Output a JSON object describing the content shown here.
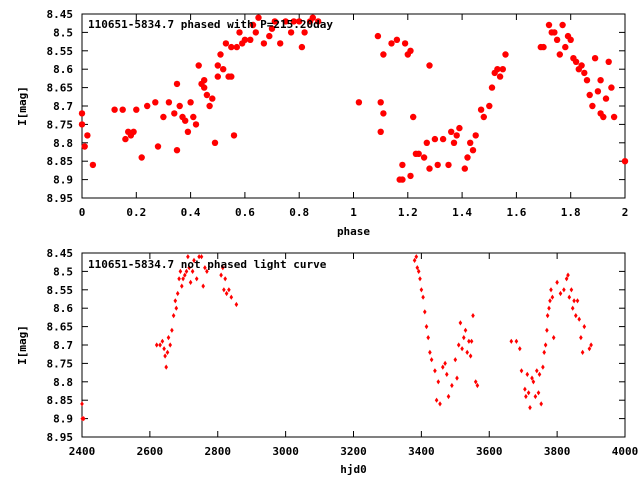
{
  "chart_data": [
    {
      "type": "scatter",
      "title": "110651-5834.7 phased with P=215.20day",
      "xlabel": "phase",
      "ylabel": "I[mag]",
      "xlim": [
        0,
        2
      ],
      "ylim": [
        8.45,
        8.95
      ],
      "y_inverted": true,
      "grid": false,
      "marker_color": "#ff0000",
      "marker": "filled-dot",
      "xticks": [
        "0",
        "0.2",
        "0.4",
        "0.6",
        "0.8",
        "1",
        "1.2",
        "1.4",
        "1.6",
        "1.8",
        "2"
      ],
      "yticks": [
        "8.45",
        "8.5",
        "8.55",
        "8.6",
        "8.65",
        "8.7",
        "8.75",
        "8.8",
        "8.85",
        "8.9",
        "8.95"
      ],
      "points": [
        [
          0.0,
          8.72
        ],
        [
          0.0,
          8.75
        ],
        [
          0.01,
          8.81
        ],
        [
          0.02,
          8.78
        ],
        [
          0.04,
          8.86
        ],
        [
          0.12,
          8.71
        ],
        [
          0.15,
          8.71
        ],
        [
          0.16,
          8.79
        ],
        [
          0.17,
          8.77
        ],
        [
          0.18,
          8.78
        ],
        [
          0.19,
          8.77
        ],
        [
          0.2,
          8.71
        ],
        [
          0.22,
          8.84
        ],
        [
          0.24,
          8.7
        ],
        [
          0.27,
          8.69
        ],
        [
          0.28,
          8.81
        ],
        [
          0.3,
          8.73
        ],
        [
          0.32,
          8.69
        ],
        [
          0.34,
          8.72
        ],
        [
          0.35,
          8.64
        ],
        [
          0.35,
          8.82
        ],
        [
          0.36,
          8.7
        ],
        [
          0.37,
          8.73
        ],
        [
          0.38,
          8.74
        ],
        [
          0.39,
          8.77
        ],
        [
          0.4,
          8.69
        ],
        [
          0.41,
          8.73
        ],
        [
          0.42,
          8.75
        ],
        [
          0.43,
          8.59
        ],
        [
          0.44,
          8.64
        ],
        [
          0.45,
          8.63
        ],
        [
          0.45,
          8.65
        ],
        [
          0.46,
          8.67
        ],
        [
          0.47,
          8.7
        ],
        [
          0.48,
          8.68
        ],
        [
          0.49,
          8.8
        ],
        [
          0.5,
          8.59
        ],
        [
          0.5,
          8.62
        ],
        [
          0.51,
          8.56
        ],
        [
          0.52,
          8.6
        ],
        [
          0.53,
          8.53
        ],
        [
          0.54,
          8.62
        ],
        [
          0.55,
          8.54
        ],
        [
          0.55,
          8.62
        ],
        [
          0.56,
          8.78
        ],
        [
          0.57,
          8.54
        ],
        [
          0.58,
          8.5
        ],
        [
          0.59,
          8.53
        ],
        [
          0.6,
          8.52
        ],
        [
          0.62,
          8.52
        ],
        [
          0.63,
          8.48
        ],
        [
          0.64,
          8.5
        ],
        [
          0.65,
          8.46
        ],
        [
          0.67,
          8.53
        ],
        [
          0.69,
          8.51
        ],
        [
          0.7,
          8.49
        ],
        [
          0.71,
          8.47
        ],
        [
          0.73,
          8.53
        ],
        [
          0.75,
          8.47
        ],
        [
          0.77,
          8.5
        ],
        [
          0.78,
          8.47
        ],
        [
          0.8,
          8.47
        ],
        [
          0.81,
          8.54
        ],
        [
          0.82,
          8.5
        ],
        [
          0.84,
          8.47
        ],
        [
          0.85,
          8.46
        ],
        [
          0.87,
          8.47
        ],
        [
          1.02,
          8.69
        ],
        [
          1.09,
          8.51
        ],
        [
          1.1,
          8.77
        ],
        [
          1.1,
          8.69
        ],
        [
          1.11,
          8.56
        ],
        [
          1.11,
          8.72
        ],
        [
          1.14,
          8.53
        ],
        [
          1.16,
          8.52
        ],
        [
          1.17,
          8.9
        ],
        [
          1.18,
          8.86
        ],
        [
          1.18,
          8.9
        ],
        [
          1.19,
          8.53
        ],
        [
          1.2,
          8.56
        ],
        [
          1.21,
          8.89
        ],
        [
          1.21,
          8.55
        ],
        [
          1.22,
          8.73
        ],
        [
          1.23,
          8.83
        ],
        [
          1.24,
          8.83
        ],
        [
          1.26,
          8.84
        ],
        [
          1.27,
          8.8
        ],
        [
          1.28,
          8.59
        ],
        [
          1.28,
          8.87
        ],
        [
          1.3,
          8.79
        ],
        [
          1.31,
          8.86
        ],
        [
          1.33,
          8.79
        ],
        [
          1.35,
          8.86
        ],
        [
          1.36,
          8.77
        ],
        [
          1.37,
          8.8
        ],
        [
          1.38,
          8.78
        ],
        [
          1.39,
          8.76
        ],
        [
          1.41,
          8.87
        ],
        [
          1.42,
          8.84
        ],
        [
          1.43,
          8.8
        ],
        [
          1.44,
          8.82
        ],
        [
          1.45,
          8.78
        ],
        [
          1.47,
          8.71
        ],
        [
          1.48,
          8.73
        ],
        [
          1.5,
          8.7
        ],
        [
          1.51,
          8.65
        ],
        [
          1.52,
          8.61
        ],
        [
          1.53,
          8.6
        ],
        [
          1.54,
          8.62
        ],
        [
          1.55,
          8.6
        ],
        [
          1.56,
          8.56
        ],
        [
          1.69,
          8.54
        ],
        [
          1.7,
          8.54
        ],
        [
          1.72,
          8.48
        ],
        [
          1.73,
          8.5
        ],
        [
          1.74,
          8.5
        ],
        [
          1.75,
          8.52
        ],
        [
          1.76,
          8.56
        ],
        [
          1.77,
          8.48
        ],
        [
          1.78,
          8.54
        ],
        [
          1.79,
          8.51
        ],
        [
          1.8,
          8.52
        ],
        [
          1.81,
          8.57
        ],
        [
          1.82,
          8.58
        ],
        [
          1.83,
          8.6
        ],
        [
          1.84,
          8.59
        ],
        [
          1.85,
          8.61
        ],
        [
          1.86,
          8.63
        ],
        [
          1.87,
          8.67
        ],
        [
          1.88,
          8.7
        ],
        [
          1.89,
          8.57
        ],
        [
          1.9,
          8.66
        ],
        [
          1.91,
          8.63
        ],
        [
          1.91,
          8.72
        ],
        [
          1.92,
          8.73
        ],
        [
          1.93,
          8.68
        ],
        [
          1.94,
          8.58
        ],
        [
          1.95,
          8.65
        ],
        [
          1.96,
          8.73
        ],
        [
          2.0,
          8.85
        ]
      ]
    },
    {
      "type": "scatter",
      "title": "110651-5834.7 not phased light curve",
      "xlabel": "hjd0",
      "ylabel": "I[mag]",
      "xlim": [
        2400,
        4000
      ],
      "ylim": [
        8.45,
        8.95
      ],
      "y_inverted": true,
      "grid": false,
      "marker_color": "#ff0000",
      "marker": "small-diamond",
      "xticks": [
        "2400",
        "2600",
        "2800",
        "3000",
        "3200",
        "3400",
        "3600",
        "3800",
        "4000"
      ],
      "yticks": [
        "8.45",
        "8.5",
        "8.55",
        "8.6",
        "8.65",
        "8.7",
        "8.75",
        "8.8",
        "8.85",
        "8.9",
        "8.95"
      ],
      "points": [
        [
          2400,
          8.86
        ],
        [
          2401,
          8.9
        ],
        [
          2405,
          8.9
        ],
        [
          2620,
          8.7
        ],
        [
          2630,
          8.7
        ],
        [
          2637,
          8.69
        ],
        [
          2642,
          8.71
        ],
        [
          2645,
          8.73
        ],
        [
          2648,
          8.76
        ],
        [
          2652,
          8.72
        ],
        [
          2655,
          8.68
        ],
        [
          2660,
          8.7
        ],
        [
          2665,
          8.66
        ],
        [
          2670,
          8.62
        ],
        [
          2675,
          8.58
        ],
        [
          2678,
          8.6
        ],
        [
          2682,
          8.56
        ],
        [
          2686,
          8.52
        ],
        [
          2690,
          8.5
        ],
        [
          2694,
          8.54
        ],
        [
          2698,
          8.52
        ],
        [
          2703,
          8.51
        ],
        [
          2708,
          8.5
        ],
        [
          2712,
          8.46
        ],
        [
          2716,
          8.49
        ],
        [
          2720,
          8.53
        ],
        [
          2726,
          8.5
        ],
        [
          2730,
          8.47
        ],
        [
          2738,
          8.52
        ],
        [
          2745,
          8.46
        ],
        [
          2752,
          8.46
        ],
        [
          2757,
          8.54
        ],
        [
          2762,
          8.49
        ],
        [
          2768,
          8.5
        ],
        [
          2810,
          8.51
        ],
        [
          2815,
          8.49
        ],
        [
          2818,
          8.55
        ],
        [
          2822,
          8.52
        ],
        [
          2826,
          8.56
        ],
        [
          2833,
          8.55
        ],
        [
          2840,
          8.57
        ],
        [
          2855,
          8.59
        ],
        [
          3380,
          8.47
        ],
        [
          3385,
          8.46
        ],
        [
          3388,
          8.49
        ],
        [
          3392,
          8.5
        ],
        [
          3396,
          8.52
        ],
        [
          3400,
          8.55
        ],
        [
          3405,
          8.57
        ],
        [
          3410,
          8.61
        ],
        [
          3415,
          8.65
        ],
        [
          3420,
          8.68
        ],
        [
          3425,
          8.72
        ],
        [
          3430,
          8.74
        ],
        [
          3440,
          8.77
        ],
        [
          3445,
          8.85
        ],
        [
          3450,
          8.8
        ],
        [
          3455,
          8.86
        ],
        [
          3463,
          8.76
        ],
        [
          3470,
          8.75
        ],
        [
          3475,
          8.78
        ],
        [
          3480,
          8.84
        ],
        [
          3490,
          8.81
        ],
        [
          3500,
          8.74
        ],
        [
          3505,
          8.79
        ],
        [
          3510,
          8.7
        ],
        [
          3515,
          8.64
        ],
        [
          3520,
          8.71
        ],
        [
          3525,
          8.68
        ],
        [
          3530,
          8.66
        ],
        [
          3535,
          8.72
        ],
        [
          3540,
          8.69
        ],
        [
          3545,
          8.73
        ],
        [
          3548,
          8.69
        ],
        [
          3552,
          8.62
        ],
        [
          3560,
          8.8
        ],
        [
          3565,
          8.81
        ],
        [
          3665,
          8.69
        ],
        [
          3680,
          8.69
        ],
        [
          3690,
          8.71
        ],
        [
          3695,
          8.77
        ],
        [
          3705,
          8.82
        ],
        [
          3708,
          8.84
        ],
        [
          3712,
          8.78
        ],
        [
          3716,
          8.83
        ],
        [
          3720,
          8.87
        ],
        [
          3726,
          8.79
        ],
        [
          3730,
          8.8
        ],
        [
          3736,
          8.84
        ],
        [
          3740,
          8.77
        ],
        [
          3745,
          8.83
        ],
        [
          3748,
          8.78
        ],
        [
          3753,
          8.86
        ],
        [
          3758,
          8.76
        ],
        [
          3762,
          8.72
        ],
        [
          3766,
          8.7
        ],
        [
          3770,
          8.66
        ],
        [
          3772,
          8.62
        ],
        [
          3776,
          8.6
        ],
        [
          3779,
          8.58
        ],
        [
          3782,
          8.55
        ],
        [
          3786,
          8.57
        ],
        [
          3790,
          8.68
        ],
        [
          3800,
          8.53
        ],
        [
          3810,
          8.56
        ],
        [
          3820,
          8.55
        ],
        [
          3828,
          8.52
        ],
        [
          3832,
          8.51
        ],
        [
          3836,
          8.57
        ],
        [
          3842,
          8.55
        ],
        [
          3846,
          8.6
        ],
        [
          3850,
          8.58
        ],
        [
          3855,
          8.62
        ],
        [
          3860,
          8.58
        ],
        [
          3865,
          8.63
        ],
        [
          3870,
          8.68
        ],
        [
          3875,
          8.72
        ],
        [
          3880,
          8.65
        ],
        [
          3895,
          8.71
        ],
        [
          3900,
          8.7
        ]
      ]
    }
  ]
}
